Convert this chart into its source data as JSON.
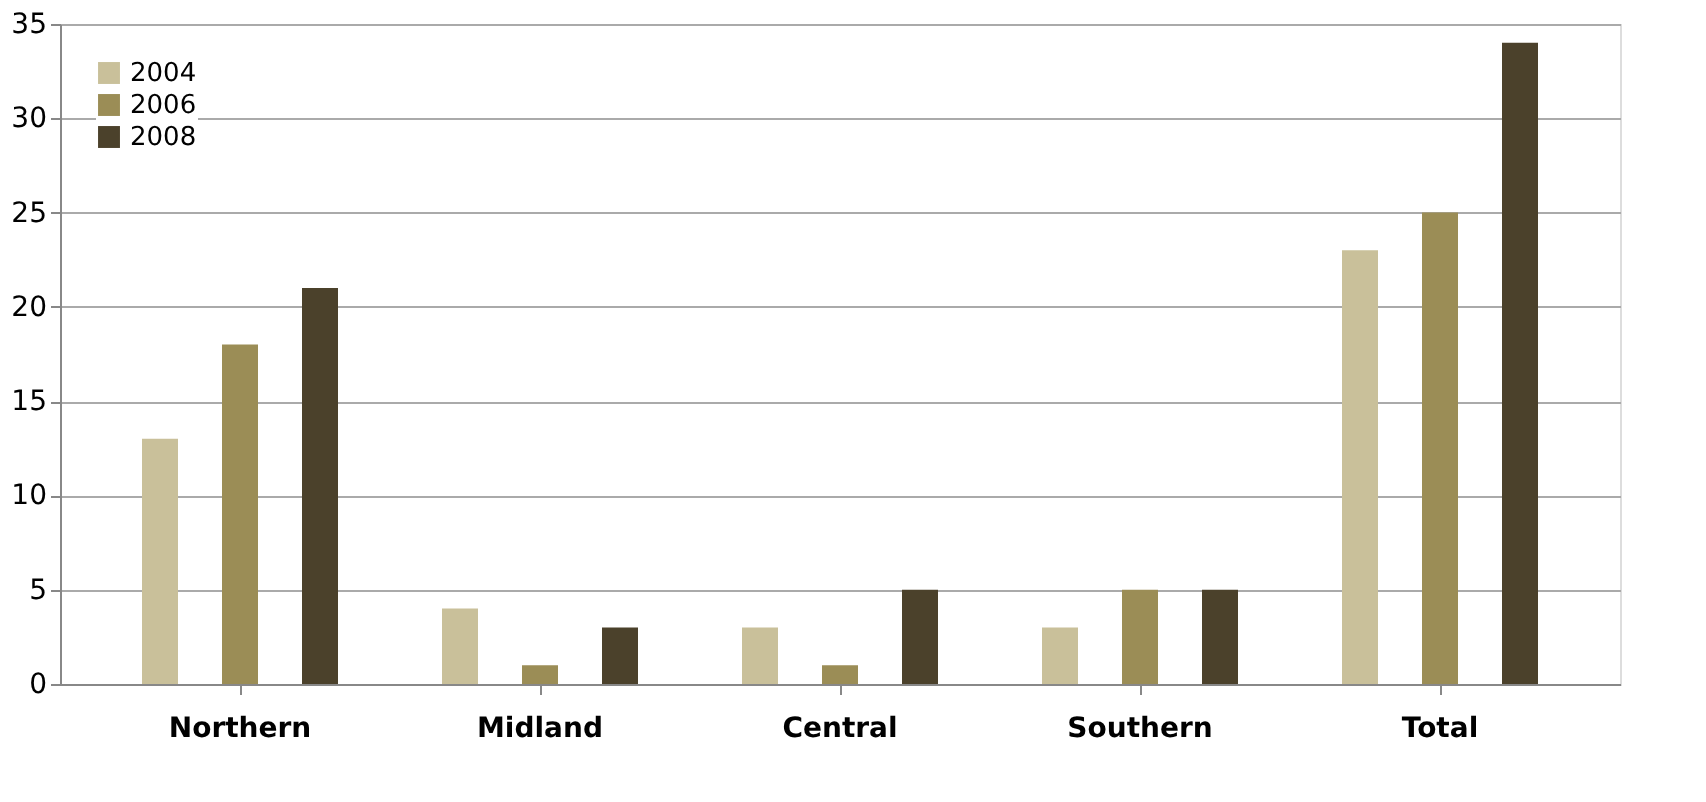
{
  "chart_data": {
    "type": "bar",
    "categories": [
      "Northern",
      "Midland",
      "Central",
      "Southern",
      "Total"
    ],
    "series": [
      {
        "name": "2004",
        "color": "#c9c09a",
        "values": [
          13,
          4,
          3,
          3,
          23
        ]
      },
      {
        "name": "2006",
        "color": "#9b8d56",
        "values": [
          18,
          1,
          1,
          5,
          25
        ]
      },
      {
        "name": "2008",
        "color": "#4b412b",
        "values": [
          21,
          3,
          5,
          5,
          34
        ]
      }
    ],
    "ylim": [
      0,
      35
    ],
    "yticks": [
      0,
      5,
      10,
      15,
      20,
      25,
      30,
      35
    ],
    "grid": "y",
    "legend": "top left"
  }
}
